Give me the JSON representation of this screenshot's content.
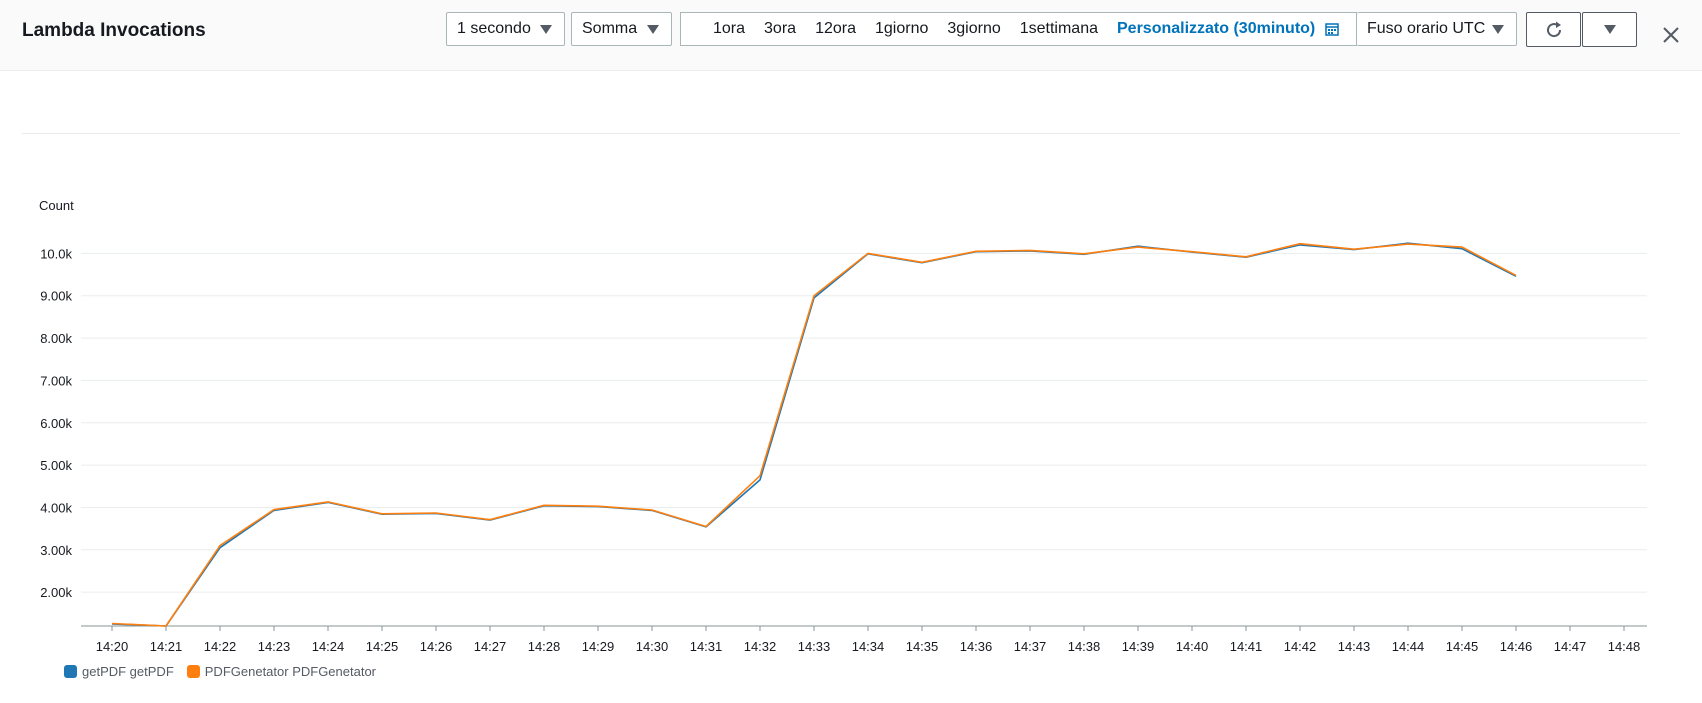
{
  "header": {
    "title": "Lambda Invocations",
    "period": "1 secondo",
    "statistic": "Somma",
    "ranges": [
      "1ora",
      "3ora",
      "12ora",
      "1giorno",
      "3giorno",
      "1settimana"
    ],
    "custom_range": "Personalizzato (30minuto)",
    "timezone": "Fuso orario UTC"
  },
  "icons": {
    "calendar": "calendar-icon",
    "refresh": "refresh-icon",
    "dropdown": "chevron-down-icon",
    "close": "close-icon"
  },
  "chart_data": {
    "type": "line",
    "ylabel": "Count",
    "ylim": [
      1200,
      10600
    ],
    "yticks": [
      2000,
      3000,
      4000,
      5000,
      6000,
      7000,
      8000,
      9000,
      10000
    ],
    "ytick_labels": [
      "2.00k",
      "3.00k",
      "4.00k",
      "5.00k",
      "6.00k",
      "7.00k",
      "8.00k",
      "9.00k",
      "10.0k"
    ],
    "categories": [
      "14:20",
      "14:21",
      "14:22",
      "14:23",
      "14:24",
      "14:25",
      "14:26",
      "14:27",
      "14:28",
      "14:29",
      "14:30",
      "14:31",
      "14:32",
      "14:33",
      "14:34",
      "14:35",
      "14:36",
      "14:37",
      "14:38",
      "14:39",
      "14:40",
      "14:41",
      "14:42",
      "14:43",
      "14:44",
      "14:45",
      "14:46",
      "14:47",
      "14:48"
    ],
    "grid": true,
    "legend_position": "bottom-left",
    "series": [
      {
        "name": "getPDF getPDF",
        "color": "#1f77b4",
        "values": [
          1250,
          1200,
          3050,
          3930,
          4120,
          3840,
          3860,
          3700,
          4040,
          4020,
          3930,
          3540,
          4650,
          8950,
          9990,
          9780,
          10040,
          10060,
          9980,
          10170,
          10030,
          9910,
          10200,
          10090,
          10240,
          10110,
          9460,
          null,
          null
        ]
      },
      {
        "name": "PDFGenetator PDFGenetator",
        "color": "#ff7f0e",
        "values": [
          1260,
          1200,
          3100,
          3950,
          4130,
          3850,
          3870,
          3710,
          4050,
          4030,
          3940,
          3550,
          4750,
          9000,
          10000,
          9790,
          10050,
          10070,
          9990,
          10150,
          10040,
          9920,
          10230,
          10100,
          10220,
          10150,
          9480,
          null,
          null
        ]
      }
    ]
  }
}
